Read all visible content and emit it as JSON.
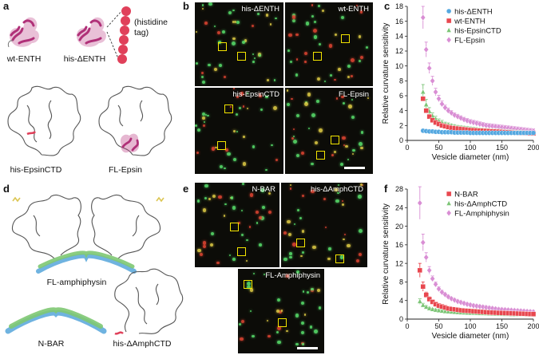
{
  "panels": {
    "a": {
      "label": "a",
      "captions": [
        "wt-ENTH",
        "his-ΔENTH",
        "(histidine\ntag)",
        "his-EpsinCTD",
        "FL-Epsin"
      ]
    },
    "b": {
      "label": "b",
      "images": [
        "his-ΔENTH",
        "wt-ENTH",
        "his-EpsinCTD",
        "FL-Epsin"
      ]
    },
    "d": {
      "label": "d",
      "captions": [
        "FL-amphiphysin",
        "N-BAR",
        "his-ΔAmphCTD"
      ]
    },
    "e": {
      "label": "e",
      "images": [
        "N-BAR",
        "his-ΔAmphCTD",
        "FL-Amphiphysin"
      ]
    }
  },
  "chart_data": [
    {
      "panel": "c",
      "type": "scatter",
      "xlabel": "Vesicle diameter (nm)",
      "ylabel": "Relative curvature sensitivity",
      "xlim": [
        0,
        200
      ],
      "ylim": [
        0,
        18
      ],
      "xticks": [
        0,
        50,
        100,
        150,
        200
      ],
      "yticks": [
        0,
        2,
        4,
        6,
        8,
        10,
        12,
        14,
        16,
        18
      ],
      "legend": "top-right",
      "series": [
        {
          "name": "his-ΔENTH",
          "marker": "circle",
          "color": "#55a8e0",
          "x": [
            25,
            30,
            35,
            40,
            45,
            50,
            55,
            60,
            65,
            70,
            75,
            80,
            85,
            90,
            95,
            100,
            105,
            110,
            115,
            120,
            125,
            130,
            135,
            140,
            145,
            150,
            155,
            160,
            165,
            170,
            175,
            180,
            185,
            190,
            195,
            200
          ],
          "y": [
            1.3,
            1.25,
            1.2,
            1.2,
            1.15,
            1.15,
            1.1,
            1.1,
            1.1,
            1.1,
            1.05,
            1.05,
            1.05,
            1.05,
            1.05,
            1.0,
            1.0,
            1.0,
            1.0,
            1.0,
            1.0,
            1.0,
            1.0,
            1.0,
            1.0,
            1.0,
            1.0,
            1.0,
            1.0,
            1.0,
            1.0,
            1.0,
            1.0,
            1.0,
            1.0,
            1.0
          ]
        },
        {
          "name": "wt-ENTH",
          "marker": "square",
          "color": "#e8474f",
          "x": [
            25,
            30,
            35,
            40,
            45,
            50,
            55,
            60,
            65,
            70,
            75,
            80,
            85,
            90,
            95,
            100,
            105,
            110,
            115,
            120,
            125,
            130,
            135,
            140,
            145,
            150,
            155,
            160,
            165,
            170,
            175,
            180,
            185,
            190,
            195,
            200
          ],
          "y": [
            5.6,
            4.0,
            3.2,
            2.7,
            2.4,
            2.2,
            2.0,
            1.9,
            1.8,
            1.7,
            1.65,
            1.6,
            1.55,
            1.5,
            1.45,
            1.4,
            1.38,
            1.35,
            1.32,
            1.3,
            1.28,
            1.25,
            1.22,
            1.2,
            1.18,
            1.15,
            1.12,
            1.1,
            1.08,
            1.05,
            1.02,
            1.0,
            1.0,
            0.98,
            0.95,
            0.95
          ]
        },
        {
          "name": "his-EpsinCTD",
          "marker": "triangle",
          "color": "#7cc576",
          "x": [
            25,
            30,
            35,
            40,
            45,
            50,
            55,
            60,
            65,
            70,
            75,
            80,
            85,
            90,
            95,
            100,
            105,
            110,
            115,
            120,
            125,
            130,
            135,
            140,
            145,
            150,
            155,
            160,
            165,
            170,
            175,
            180,
            185,
            190,
            195,
            200
          ],
          "y": [
            6.5,
            4.8,
            3.9,
            3.3,
            2.9,
            2.6,
            2.4,
            2.2,
            2.1,
            2.0,
            1.9,
            1.8,
            1.75,
            1.7,
            1.65,
            1.6,
            1.55,
            1.5,
            1.45,
            1.42,
            1.38,
            1.35,
            1.32,
            1.3,
            1.28,
            1.25,
            1.22,
            1.2,
            1.18,
            1.15,
            1.12,
            1.1,
            1.08,
            1.05,
            1.02,
            1.0
          ],
          "err": [
            1.0,
            0.7,
            0.5,
            0.4,
            0.35,
            0.3,
            0.3,
            0.25,
            0.25,
            0.2,
            0.2,
            0.2,
            0.2,
            0.2,
            0.2,
            0.2,
            0.2,
            0.2,
            0.2,
            0.2,
            0.2,
            0.2,
            0.2,
            0.2,
            0.2,
            0.2,
            0.2,
            0.2,
            0.2,
            0.2,
            0.2,
            0.2,
            0.2,
            0.2,
            0.2,
            0.2
          ]
        },
        {
          "name": "FL-Epsin",
          "marker": "diamond",
          "color": "#d98ed4",
          "x": [
            25,
            30,
            35,
            40,
            45,
            50,
            55,
            60,
            65,
            70,
            75,
            80,
            85,
            90,
            95,
            100,
            105,
            110,
            115,
            120,
            125,
            130,
            135,
            140,
            145,
            150,
            155,
            160,
            165,
            170,
            175,
            180,
            185,
            190,
            195,
            200
          ],
          "y": [
            16.5,
            12.2,
            9.7,
            8.0,
            6.5,
            5.6,
            4.9,
            4.4,
            4.0,
            3.7,
            3.4,
            3.2,
            3.0,
            2.8,
            2.65,
            2.5,
            2.4,
            2.3,
            2.2,
            2.1,
            2.0,
            1.95,
            1.9,
            1.85,
            1.8,
            1.75,
            1.7,
            1.65,
            1.6,
            1.55,
            1.5,
            1.45,
            1.4,
            1.35,
            1.3,
            1.25
          ],
          "err": [
            1.5,
            1.0,
            0.7,
            0.6,
            0.5,
            0.45,
            0.4,
            0.35,
            0.35,
            0.3,
            0.3,
            0.3,
            0.3,
            0.3,
            0.3,
            0.3,
            0.3,
            0.3,
            0.3,
            0.3,
            0.3,
            0.3,
            0.3,
            0.3,
            0.3,
            0.3,
            0.3,
            0.3,
            0.3,
            0.3,
            0.3,
            0.3,
            0.3,
            0.3,
            0.3,
            0.3
          ]
        }
      ]
    },
    {
      "panel": "f",
      "type": "scatter",
      "xlabel": "Vesicle diameter (nm)",
      "ylabel": "Relative curvature sensitivity",
      "xlim": [
        0,
        200
      ],
      "ylim": [
        0,
        28
      ],
      "xticks": [
        0,
        50,
        100,
        150,
        200
      ],
      "yticks": [
        0,
        4,
        8,
        12,
        16,
        20,
        24,
        28
      ],
      "legend": "top-right",
      "series": [
        {
          "name": "N-BAR",
          "marker": "square",
          "color": "#e8474f",
          "x": [
            20,
            25,
            30,
            35,
            40,
            45,
            50,
            55,
            60,
            65,
            70,
            75,
            80,
            85,
            90,
            95,
            100,
            105,
            110,
            115,
            120,
            125,
            130,
            135,
            140,
            145,
            150,
            155,
            160,
            165,
            170,
            175,
            180,
            185,
            190,
            195,
            200
          ],
          "y": [
            10.5,
            7.0,
            5.2,
            4.3,
            3.7,
            3.2,
            2.9,
            2.7,
            2.5,
            2.3,
            2.2,
            2.1,
            2.0,
            1.9,
            1.85,
            1.8,
            1.75,
            1.7,
            1.65,
            1.6,
            1.55,
            1.5,
            1.45,
            1.4,
            1.38,
            1.35,
            1.32,
            1.3,
            1.28,
            1.25,
            1.22,
            1.2,
            1.18,
            1.15,
            1.12,
            1.1,
            1.08
          ],
          "err": [
            1.5,
            1.0,
            0.6,
            0.5,
            0.4,
            0.35,
            0.3,
            0.3,
            0.25,
            0.25,
            0.2,
            0.2,
            0.2,
            0.2,
            0.2,
            0.2,
            0.2,
            0.2,
            0.2,
            0.2,
            0.2,
            0.2,
            0.2,
            0.2,
            0.2,
            0.2,
            0.2,
            0.2,
            0.2,
            0.2,
            0.2,
            0.2,
            0.2,
            0.2,
            0.2,
            0.2,
            0.2
          ]
        },
        {
          "name": "his-ΔAmphCTD",
          "marker": "triangle",
          "color": "#7cc576",
          "x": [
            20,
            25,
            30,
            35,
            40,
            45,
            50,
            55,
            60,
            65,
            70,
            75,
            80,
            85,
            90,
            95,
            100,
            105,
            110,
            115,
            120,
            125,
            130,
            135,
            140,
            145,
            150,
            155,
            160,
            165,
            170,
            175,
            180,
            185,
            190,
            195,
            200
          ],
          "y": [
            3.8,
            3.0,
            2.6,
            2.3,
            2.1,
            1.95,
            1.85,
            1.75,
            1.65,
            1.6,
            1.55,
            1.5,
            1.45,
            1.4,
            1.38,
            1.35,
            1.32,
            1.3,
            1.28,
            1.25,
            1.22,
            1.2,
            1.18,
            1.15,
            1.12,
            1.1,
            1.08,
            1.05,
            1.05,
            1.02,
            1.0,
            1.0,
            1.0,
            0.98,
            0.98,
            0.95,
            0.95
          ],
          "err": [
            0.6,
            0.4,
            0.3,
            0.25,
            0.2,
            0.2,
            0.2,
            0.2,
            0.2,
            0.2,
            0.15,
            0.15,
            0.15,
            0.15,
            0.15,
            0.15,
            0.15,
            0.15,
            0.15,
            0.15,
            0.15,
            0.15,
            0.15,
            0.15,
            0.15,
            0.15,
            0.15,
            0.15,
            0.15,
            0.15,
            0.15,
            0.15,
            0.15,
            0.15,
            0.15,
            0.15,
            0.15
          ]
        },
        {
          "name": "FL-Amphiphysin",
          "marker": "diamond",
          "color": "#d98ed4",
          "x": [
            20,
            25,
            30,
            35,
            40,
            45,
            50,
            55,
            60,
            65,
            70,
            75,
            80,
            85,
            90,
            95,
            100,
            105,
            110,
            115,
            120,
            125,
            130,
            135,
            140,
            145,
            150,
            155,
            160,
            165,
            170,
            175,
            180,
            185,
            190,
            195,
            200
          ],
          "y": [
            25.0,
            16.5,
            13.3,
            10.5,
            8.7,
            7.5,
            6.5,
            5.8,
            5.3,
            4.8,
            4.4,
            4.1,
            3.8,
            3.6,
            3.4,
            3.2,
            3.05,
            2.9,
            2.8,
            2.7,
            2.6,
            2.5,
            2.4,
            2.3,
            2.2,
            2.1,
            2.05,
            2.0,
            1.95,
            1.9,
            1.85,
            1.8,
            1.75,
            1.7,
            1.65,
            1.6,
            1.55
          ],
          "err": [
            3.5,
            1.8,
            1.0,
            0.8,
            0.6,
            0.5,
            0.45,
            0.4,
            0.35,
            0.35,
            0.3,
            0.3,
            0.3,
            0.3,
            0.3,
            0.3,
            0.3,
            0.3,
            0.3,
            0.3,
            0.3,
            0.3,
            0.3,
            0.3,
            0.3,
            0.3,
            0.3,
            0.3,
            0.3,
            0.3,
            0.3,
            0.3,
            0.3,
            0.3,
            0.3,
            0.3,
            0.3
          ]
        }
      ]
    }
  ]
}
